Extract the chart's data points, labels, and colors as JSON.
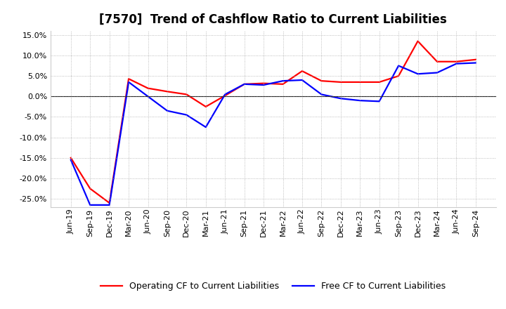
{
  "title": "[7570]  Trend of Cashflow Ratio to Current Liabilities",
  "x_labels": [
    "Jun-19",
    "Sep-19",
    "Dec-19",
    "Mar-20",
    "Jun-20",
    "Sep-20",
    "Dec-20",
    "Mar-21",
    "Jun-21",
    "Sep-21",
    "Dec-21",
    "Mar-22",
    "Jun-22",
    "Sep-22",
    "Dec-22",
    "Mar-23",
    "Jun-23",
    "Sep-23",
    "Dec-23",
    "Mar-24",
    "Jun-24",
    "Sep-24"
  ],
  "operating_cf": [
    -15.0,
    -22.5,
    -26.0,
    4.3,
    2.0,
    1.2,
    0.5,
    -2.5,
    0.2,
    3.0,
    3.2,
    3.0,
    6.2,
    3.8,
    3.5,
    3.5,
    3.5,
    5.0,
    13.5,
    8.5,
    8.5,
    9.0
  ],
  "free_cf": [
    -15.5,
    -26.5,
    -26.5,
    3.5,
    0.0,
    -3.5,
    -4.5,
    -7.5,
    0.5,
    3.0,
    2.8,
    3.8,
    4.0,
    0.5,
    -0.5,
    -1.0,
    -1.2,
    7.5,
    5.5,
    5.8,
    8.0,
    8.2
  ],
  "operating_color": "#ff0000",
  "free_color": "#0000ff",
  "background_color": "#ffffff",
  "plot_bg_color": "#ffffff",
  "grid_color": "#aaaaaa",
  "ylim_min": -27,
  "ylim_max": 16,
  "yticks": [
    -25.0,
    -20.0,
    -15.0,
    -10.0,
    -5.0,
    0.0,
    5.0,
    10.0,
    15.0
  ],
  "legend_op": "Operating CF to Current Liabilities",
  "legend_free": "Free CF to Current Liabilities",
  "title_fontsize": 12,
  "tick_fontsize": 8,
  "line_width": 1.6
}
